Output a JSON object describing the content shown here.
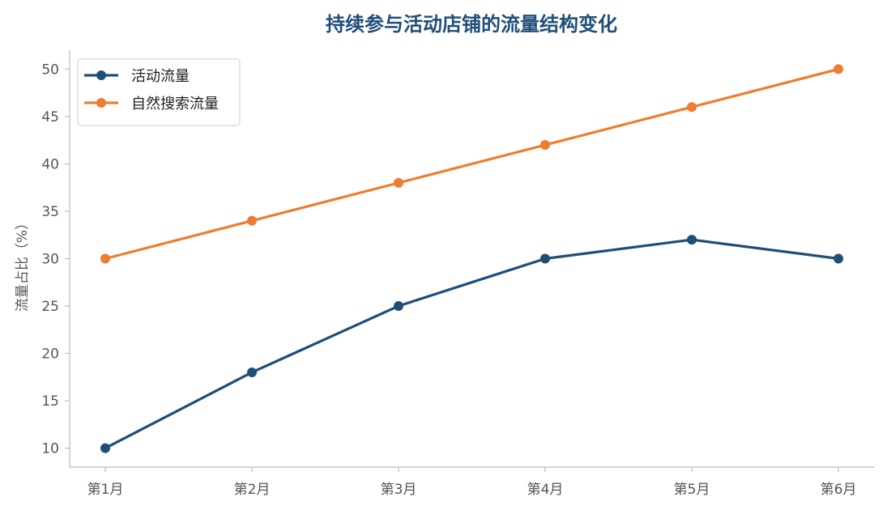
{
  "chart_data": {
    "type": "line",
    "title": "持续参与活动店铺的流量结构变化",
    "xlabel": "",
    "ylabel": "流量占比（%）",
    "categories": [
      "第1月",
      "第2月",
      "第3月",
      "第4月",
      "第5月",
      "第6月"
    ],
    "ylim": [
      8,
      52
    ],
    "yticks": [
      10,
      15,
      20,
      25,
      30,
      35,
      40,
      45,
      50
    ],
    "grid": false,
    "legend_position": "top-left",
    "series": [
      {
        "name": "活动流量",
        "color": "#1f4e79",
        "values": [
          10,
          18,
          25,
          30,
          32,
          30
        ]
      },
      {
        "name": "自然搜索流量",
        "color": "#ed7d31",
        "values": [
          30,
          34,
          38,
          42,
          46,
          50
        ]
      }
    ],
    "colors": {
      "title": "#1f4e79",
      "axis": "#bbbbbb"
    }
  }
}
